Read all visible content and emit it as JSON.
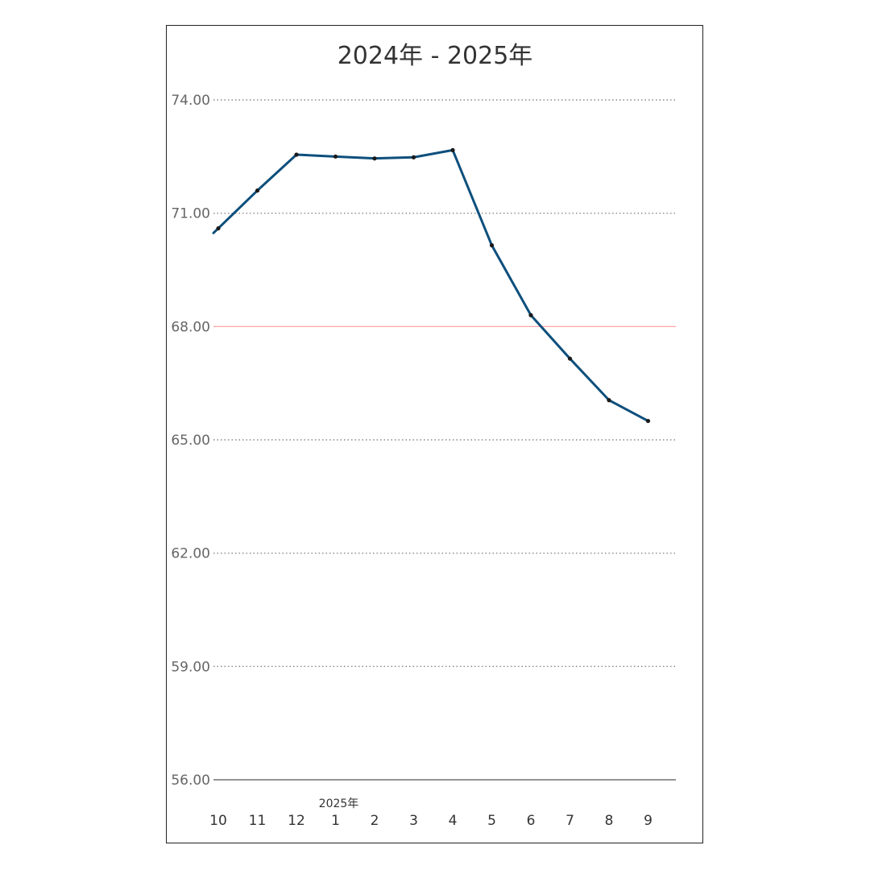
{
  "chart_data": {
    "type": "line",
    "title": "2024年 - 2025年",
    "x_group_label": "2025年",
    "categories": [
      "10",
      "11",
      "12",
      "1",
      "2",
      "3",
      "4",
      "5",
      "6",
      "7",
      "8",
      "9"
    ],
    "series": [
      {
        "values": [
          70.6,
          71.6,
          72.55,
          72.5,
          72.45,
          72.48,
          72.67,
          70.15,
          68.3,
          67.15,
          66.05,
          65.5
        ]
      }
    ],
    "y_ticks": [
      "74.00",
      "71.00",
      "68.00",
      "65.00",
      "62.00",
      "59.00",
      "56.00"
    ],
    "ylim": [
      56,
      74
    ],
    "reference_line": {
      "value": 68,
      "label": "68.00",
      "color": "#e53935"
    },
    "grid": true,
    "colors": {
      "line": "#0d4f7c",
      "marker": "#1a1a1a",
      "grid": "#888888",
      "axis": "#555555",
      "reference": "#ff9a9a"
    }
  }
}
